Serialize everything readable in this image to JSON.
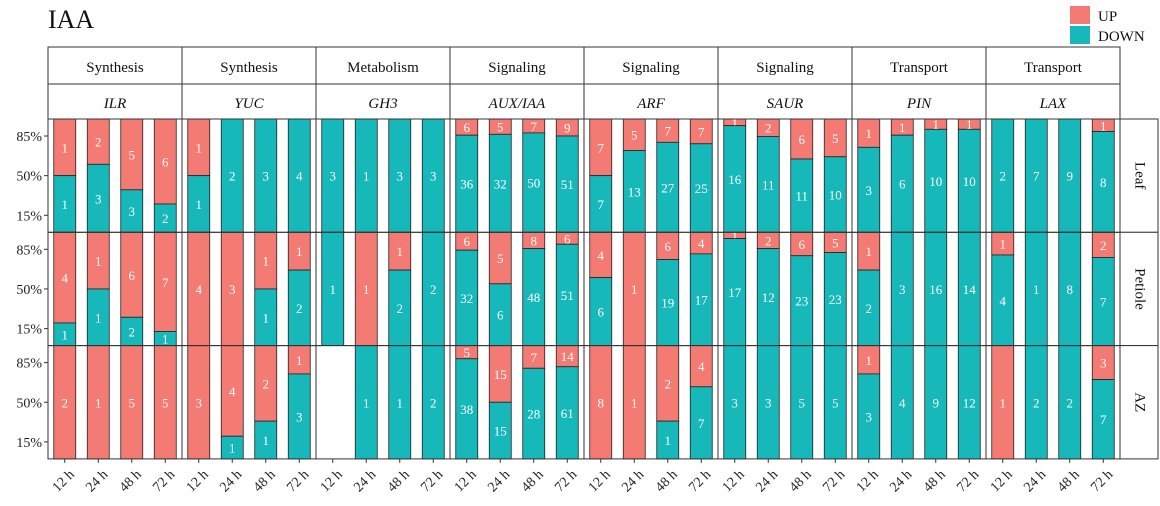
{
  "title": "IAA",
  "colors": {
    "up": "#f47a74",
    "down": "#16b8b9",
    "border": "#333333",
    "strip_bg": "#ffffff"
  },
  "legend": [
    {
      "key": "up",
      "label": "UP"
    },
    {
      "key": "down",
      "label": "DOWN"
    }
  ],
  "chart_data": {
    "type": "bar",
    "stacked": "proportion",
    "title": "IAA",
    "xlabel": "",
    "ylabel": "",
    "categories": [
      "12 h",
      "24 h",
      "48 h",
      "72 h"
    ],
    "y_tick_labels": [
      "85%",
      "50%",
      "15%"
    ],
    "legend_position": "top-right",
    "grid": false,
    "rows": [
      "Leaf",
      "Petiole",
      "AZ"
    ],
    "panels": [
      {
        "process": "Synthesis",
        "gene": "ILR",
        "up": [
          [
            1,
            2,
            5,
            6
          ],
          [
            4,
            1,
            6,
            7
          ],
          [
            2,
            1,
            5,
            5
          ]
        ],
        "down": [
          [
            1,
            3,
            3,
            2
          ],
          [
            1,
            1,
            2,
            1
          ],
          [
            0,
            0,
            0,
            0
          ]
        ]
      },
      {
        "process": "Synthesis",
        "gene": "YUC",
        "up": [
          [
            1,
            0,
            0,
            0
          ],
          [
            4,
            3,
            1,
            1
          ],
          [
            3,
            4,
            2,
            1
          ]
        ],
        "down": [
          [
            1,
            2,
            3,
            4
          ],
          [
            0,
            0,
            1,
            2
          ],
          [
            0,
            1,
            1,
            3
          ]
        ]
      },
      {
        "process": "Metabolism",
        "gene": "GH3",
        "up": [
          [
            0,
            0,
            0,
            0
          ],
          [
            0,
            1,
            1,
            0
          ],
          [
            0,
            0,
            0,
            0
          ]
        ],
        "down": [
          [
            3,
            1,
            3,
            3
          ],
          [
            1,
            0,
            2,
            2
          ],
          [
            0,
            1,
            1,
            2
          ]
        ]
      },
      {
        "process": "Signaling",
        "gene": "AUX/IAA",
        "up": [
          [
            6,
            5,
            7,
            9
          ],
          [
            6,
            5,
            8,
            6
          ],
          [
            5,
            15,
            7,
            14
          ]
        ],
        "down": [
          [
            36,
            32,
            50,
            51
          ],
          [
            32,
            6,
            48,
            51
          ],
          [
            38,
            15,
            28,
            61
          ]
        ]
      },
      {
        "process": "Signaling",
        "gene": "ARF",
        "up": [
          [
            7,
            5,
            7,
            7
          ],
          [
            4,
            1,
            6,
            4
          ],
          [
            8,
            1,
            2,
            4
          ]
        ],
        "down": [
          [
            7,
            13,
            27,
            25
          ],
          [
            6,
            0,
            19,
            17
          ],
          [
            0,
            0,
            1,
            7
          ]
        ]
      },
      {
        "process": "Signaling",
        "gene": "SAUR",
        "up": [
          [
            1,
            2,
            6,
            5
          ],
          [
            1,
            2,
            6,
            5
          ],
          [
            0,
            0,
            0,
            0
          ]
        ],
        "down": [
          [
            16,
            11,
            11,
            10
          ],
          [
            17,
            12,
            23,
            23
          ],
          [
            3,
            3,
            5,
            5
          ]
        ]
      },
      {
        "process": "Transport",
        "gene": "PIN",
        "up": [
          [
            1,
            1,
            1,
            1
          ],
          [
            1,
            0,
            0,
            0
          ],
          [
            1,
            0,
            0,
            0
          ]
        ],
        "down": [
          [
            3,
            6,
            10,
            10
          ],
          [
            2,
            3,
            16,
            14
          ],
          [
            3,
            4,
            9,
            12
          ]
        ]
      },
      {
        "process": "Transport",
        "gene": "LAX",
        "up": [
          [
            0,
            0,
            0,
            1
          ],
          [
            1,
            0,
            0,
            2
          ],
          [
            1,
            0,
            0,
            3
          ]
        ],
        "down": [
          [
            2,
            7,
            9,
            8
          ],
          [
            4,
            1,
            8,
            7
          ],
          [
            0,
            2,
            2,
            7
          ]
        ]
      }
    ]
  }
}
